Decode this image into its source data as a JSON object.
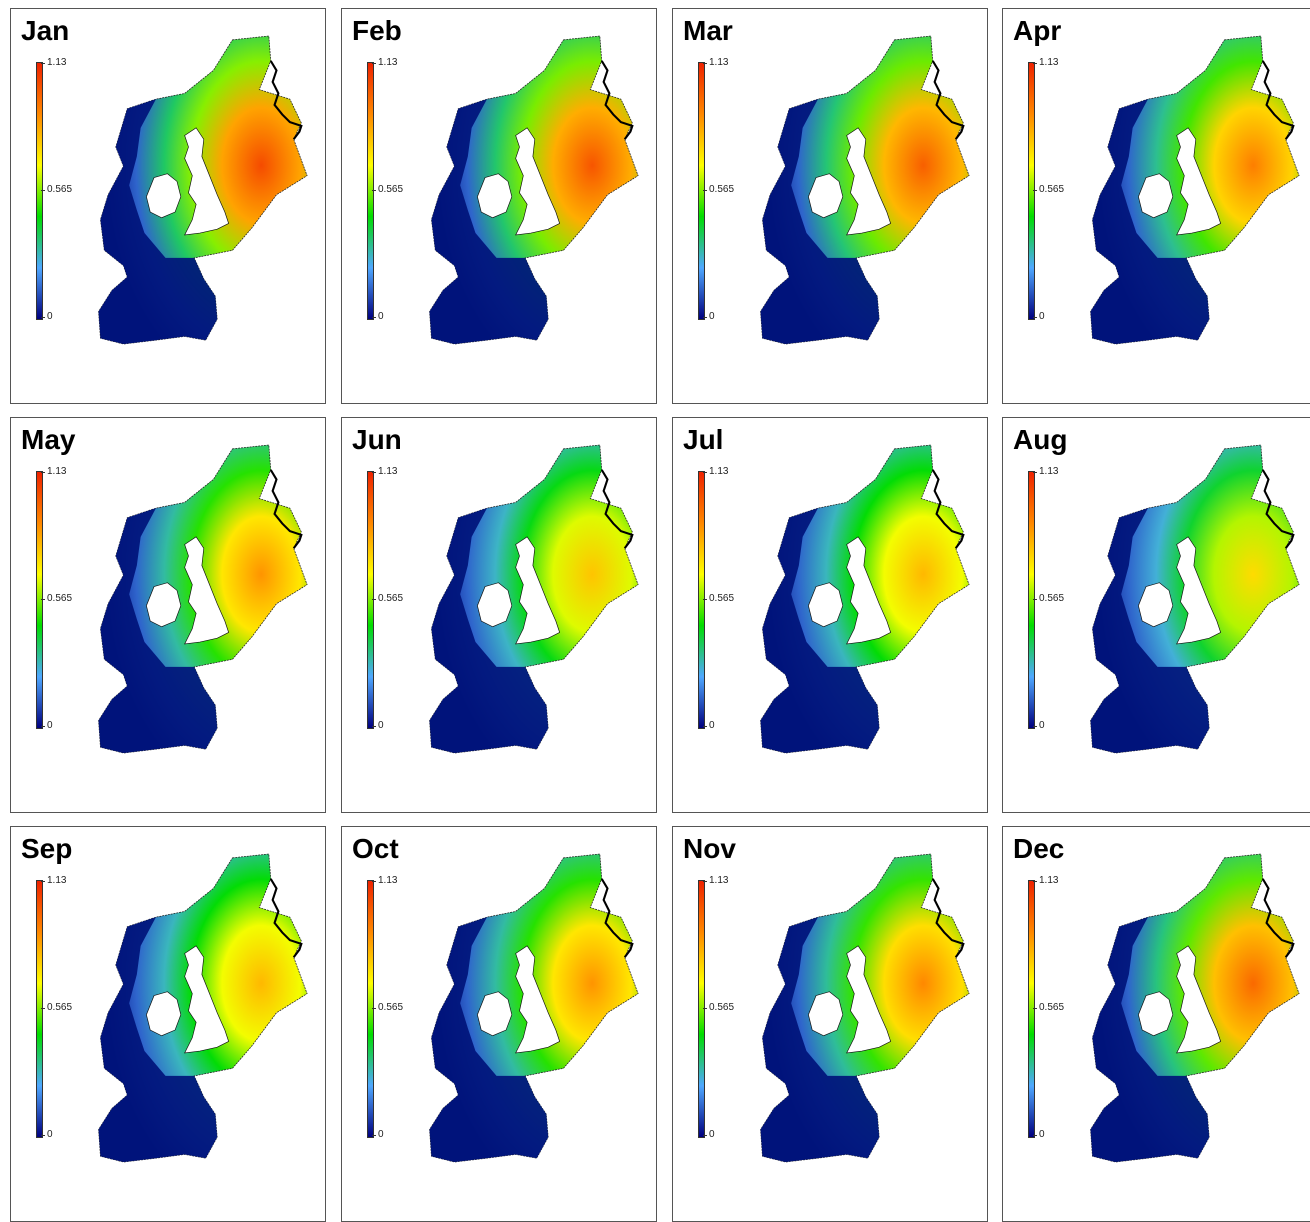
{
  "colorbar": {
    "max_label": "1.13",
    "mid_label": "0.565",
    "min_label": "0",
    "stops": [
      "#00007f",
      "#4fa8ff",
      "#00dd00",
      "#ffff00",
      "#ff8800",
      "#ee2200"
    ]
  },
  "land_color": "#ffffff",
  "deep_color": "#00147a",
  "months": [
    {
      "name": "Jan",
      "intensity": 0.92
    },
    {
      "name": "Feb",
      "intensity": 0.9
    },
    {
      "name": "Mar",
      "intensity": 0.88
    },
    {
      "name": "Apr",
      "intensity": 0.82
    },
    {
      "name": "May",
      "intensity": 0.78
    },
    {
      "name": "Jun",
      "intensity": 0.7
    },
    {
      "name": "Jul",
      "intensity": 0.72
    },
    {
      "name": "Aug",
      "intensity": 0.66
    },
    {
      "name": "Sep",
      "intensity": 0.72
    },
    {
      "name": "Oct",
      "intensity": 0.78
    },
    {
      "name": "Nov",
      "intensity": 0.8
    },
    {
      "name": "Dec",
      "intensity": 0.86
    }
  ]
}
